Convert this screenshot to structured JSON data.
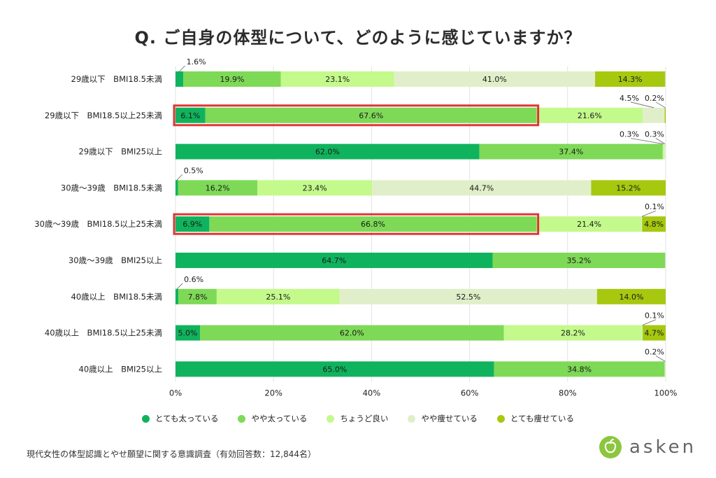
{
  "title": "Q. ご自身の体型について、どのように感じていますか？",
  "chart_data": {
    "type": "bar",
    "orientation": "horizontal",
    "stacked": true,
    "percent": true,
    "xlim": [
      0,
      100
    ],
    "xticks": [
      "0%",
      "20%",
      "40%",
      "60%",
      "80%",
      "100%"
    ],
    "grid": true,
    "legend_position": "bottom",
    "categories": [
      "29歳以下　BMI18.5未満",
      "29歳以下　BMI18.5以上25未満",
      "29歳以下　BMI25以上",
      "30歳～39歳　BMI18.5未満",
      "30歳～39歳　BMI18.5以上25未満",
      "30歳～39歳　BMI25以上",
      "40歳以上　BMI18.5未満",
      "40歳以上　BMI18.5以上25未満",
      "40歳以上　BMI25以上"
    ],
    "series": [
      {
        "name": "とても太っている",
        "color": "#10b35d",
        "values": [
          1.6,
          6.1,
          62.0,
          0.5,
          6.9,
          64.7,
          0.6,
          5.0,
          65.0
        ]
      },
      {
        "name": "やや太っている",
        "color": "#7ed957",
        "values": [
          19.9,
          67.6,
          37.4,
          16.2,
          66.8,
          35.2,
          7.8,
          62.0,
          34.8
        ]
      },
      {
        "name": "ちょうど良い",
        "color": "#c4f98c",
        "values": [
          23.1,
          21.6,
          0.3,
          23.4,
          21.4,
          0.0,
          25.1,
          28.2,
          0.0
        ]
      },
      {
        "name": "やや痩せている",
        "color": "#e0efc9",
        "values": [
          41.0,
          4.5,
          0.3,
          44.7,
          0.1,
          0.0,
          52.5,
          0.1,
          0.2
        ]
      },
      {
        "name": "とても痩せている",
        "color": "#a6c80f",
        "values": [
          14.3,
          0.2,
          0.0,
          15.2,
          4.8,
          0.0,
          14.0,
          4.7,
          0.0
        ]
      }
    ],
    "labels": [
      [
        {
          "s": 0,
          "text": "1.6%",
          "callout": true
        },
        {
          "s": 1,
          "text": "19.9%"
        },
        {
          "s": 2,
          "text": "23.1%"
        },
        {
          "s": 3,
          "text": "41.0%"
        },
        {
          "s": 4,
          "text": "14.3%"
        }
      ],
      [
        {
          "s": 0,
          "text": "6.1%"
        },
        {
          "s": 1,
          "text": "67.6%"
        },
        {
          "s": 2,
          "text": "21.6%"
        },
        {
          "s": 3,
          "text": "4.5%",
          "callout": true
        },
        {
          "s": 4,
          "text": "0.2%",
          "callout": true
        }
      ],
      [
        {
          "s": 0,
          "text": "62.0%"
        },
        {
          "s": 1,
          "text": "37.4%"
        },
        {
          "s": 2,
          "text": "0.3%",
          "callout": true
        },
        {
          "s": 3,
          "text": "0.3%",
          "callout": true
        }
      ],
      [
        {
          "s": 0,
          "text": "0.5%",
          "callout": true
        },
        {
          "s": 1,
          "text": "16.2%"
        },
        {
          "s": 2,
          "text": "23.4%"
        },
        {
          "s": 3,
          "text": "44.7%"
        },
        {
          "s": 4,
          "text": "15.2%"
        }
      ],
      [
        {
          "s": 0,
          "text": "6.9%"
        },
        {
          "s": 1,
          "text": "66.8%"
        },
        {
          "s": 2,
          "text": "21.4%"
        },
        {
          "s": 3,
          "text": "0.1%",
          "callout": true
        },
        {
          "s": 4,
          "text": "4.8%"
        }
      ],
      [
        {
          "s": 0,
          "text": "64.7%"
        },
        {
          "s": 1,
          "text": "35.2%"
        }
      ],
      [
        {
          "s": 0,
          "text": "0.6%",
          "callout": true
        },
        {
          "s": 1,
          "text": "7.8%"
        },
        {
          "s": 2,
          "text": "25.1%"
        },
        {
          "s": 3,
          "text": "52.5%"
        },
        {
          "s": 4,
          "text": "14.0%"
        }
      ],
      [
        {
          "s": 0,
          "text": "5.0%"
        },
        {
          "s": 1,
          "text": "62.0%"
        },
        {
          "s": 2,
          "text": "28.2%"
        },
        {
          "s": 3,
          "text": "0.1%",
          "callout": true
        },
        {
          "s": 4,
          "text": "4.7%"
        }
      ],
      [
        {
          "s": 0,
          "text": "65.0%"
        },
        {
          "s": 1,
          "text": "34.8%"
        },
        {
          "s": 3,
          "text": "0.2%",
          "callout": true
        }
      ]
    ],
    "highlighted_rows": [
      1,
      4
    ],
    "highlight_color": "#e03434"
  },
  "footnote": "現代女性の体型認識とやせ願望に関する意識調査（有効回答数：12,844名）",
  "brand": {
    "name": "asken",
    "color": "#8cc63f",
    "icon": "apple-logo-icon"
  }
}
